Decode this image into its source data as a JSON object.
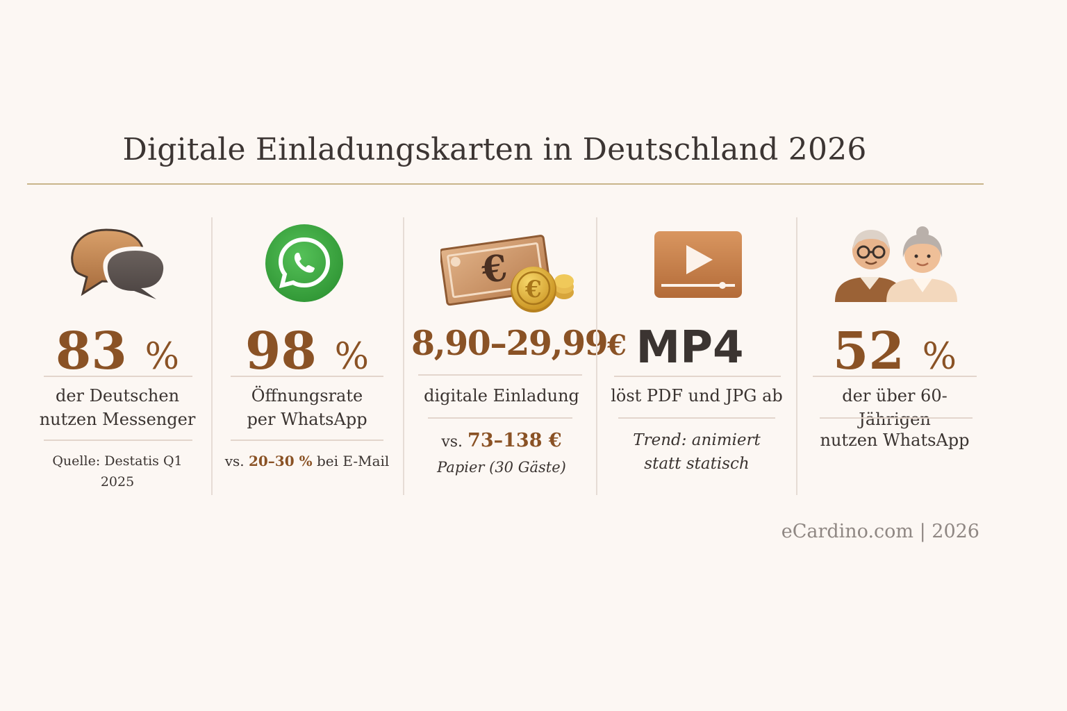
{
  "title": "Digitale Einladungskarten in Deutschland 2026",
  "columns": [
    {
      "icon": "speech-bubbles-icon",
      "value": "83",
      "unit": "%",
      "desc_line1": "der Deutschen",
      "desc_line2": "nutzen Messenger",
      "note": "Quelle: Destatis Q1 2025"
    },
    {
      "icon": "whatsapp-icon",
      "value": "98",
      "unit": "%",
      "desc_line1": "Öffnungsrate",
      "desc_line2": "per WhatsApp",
      "note_prefix": "vs.",
      "note_highlight": "20–30 %",
      "note_suffix": "bei E-Mail"
    },
    {
      "icon": "euro-money-icon",
      "value": "8,90–29,99",
      "unit": "€",
      "desc_line1": "digitale Einladung",
      "note_prefix": "vs.",
      "note_highlight": "73–138 €",
      "note_line2": "Papier (30 Gäste)"
    },
    {
      "icon": "video-play-icon",
      "value": "MP4",
      "desc_line1": "löst PDF und JPG ab",
      "note_line1": "Trend: animiert",
      "note_line2": "statt statisch"
    },
    {
      "icon": "senior-couple-icon",
      "value": "52",
      "unit": "%",
      "desc_line1": "der über 60-Jährigen",
      "note": "nutzen WhatsApp"
    }
  ],
  "footer": "eCardino.com | 2026",
  "colors": {
    "accent": "#8a5225",
    "dark": "#3b3431",
    "whatsapp_green": "#3da53f",
    "rule": "#c8b58a"
  }
}
